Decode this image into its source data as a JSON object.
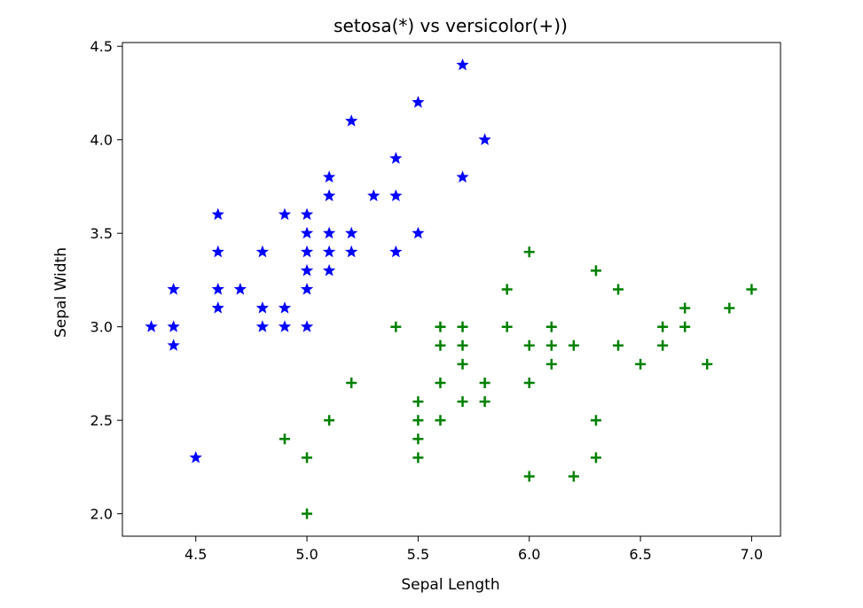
{
  "chart_data": {
    "type": "scatter",
    "title": "setosa(*) vs versicolor(+))",
    "xlabel": "Sepal Length",
    "ylabel": "Sepal Width",
    "xlim": [
      4.17,
      7.13
    ],
    "ylim": [
      1.88,
      4.52
    ],
    "xticks": [
      "4.5",
      "5.0",
      "5.5",
      "6.0",
      "6.5",
      "7.0"
    ],
    "yticks": [
      "2.0",
      "2.5",
      "3.0",
      "3.5",
      "4.0",
      "4.5"
    ],
    "legend": "none",
    "grid": false,
    "series": [
      {
        "marker": "star",
        "color": "#0000ff",
        "points": [
          [
            4.3,
            3.0
          ],
          [
            4.4,
            3.2
          ],
          [
            4.4,
            3.0
          ],
          [
            4.4,
            2.9
          ],
          [
            4.5,
            2.3
          ],
          [
            4.6,
            3.6
          ],
          [
            4.6,
            3.4
          ],
          [
            4.6,
            3.2
          ],
          [
            4.6,
            3.1
          ],
          [
            4.7,
            3.2
          ],
          [
            4.8,
            3.4
          ],
          [
            4.8,
            3.1
          ],
          [
            4.8,
            3.0
          ],
          [
            4.9,
            3.6
          ],
          [
            4.9,
            3.1
          ],
          [
            4.9,
            3.0
          ],
          [
            5.0,
            3.6
          ],
          [
            5.0,
            3.5
          ],
          [
            5.0,
            3.4
          ],
          [
            5.0,
            3.3
          ],
          [
            5.0,
            3.2
          ],
          [
            5.0,
            3.0
          ],
          [
            5.1,
            3.8
          ],
          [
            5.1,
            3.7
          ],
          [
            5.1,
            3.5
          ],
          [
            5.1,
            3.4
          ],
          [
            5.1,
            3.3
          ],
          [
            5.2,
            4.1
          ],
          [
            5.2,
            3.5
          ],
          [
            5.2,
            3.4
          ],
          [
            5.3,
            3.7
          ],
          [
            5.4,
            3.9
          ],
          [
            5.4,
            3.7
          ],
          [
            5.4,
            3.4
          ],
          [
            5.5,
            4.2
          ],
          [
            5.5,
            3.5
          ],
          [
            5.7,
            4.4
          ],
          [
            5.7,
            3.8
          ],
          [
            5.8,
            4.0
          ]
        ]
      },
      {
        "marker": "plus",
        "color": "#008000",
        "points": [
          [
            4.9,
            2.4
          ],
          [
            5.0,
            2.3
          ],
          [
            5.0,
            2.0
          ],
          [
            5.1,
            2.5
          ],
          [
            5.2,
            2.7
          ],
          [
            5.4,
            3.0
          ],
          [
            5.5,
            2.6
          ],
          [
            5.5,
            2.5
          ],
          [
            5.5,
            2.4
          ],
          [
            5.5,
            2.3
          ],
          [
            5.6,
            3.0
          ],
          [
            5.6,
            2.9
          ],
          [
            5.6,
            2.7
          ],
          [
            5.6,
            2.5
          ],
          [
            5.7,
            3.0
          ],
          [
            5.7,
            2.9
          ],
          [
            5.7,
            2.8
          ],
          [
            5.7,
            2.6
          ],
          [
            5.8,
            2.7
          ],
          [
            5.8,
            2.6
          ],
          [
            5.9,
            3.2
          ],
          [
            5.9,
            3.0
          ],
          [
            6.0,
            3.4
          ],
          [
            6.0,
            2.9
          ],
          [
            6.0,
            2.7
          ],
          [
            6.0,
            2.2
          ],
          [
            6.1,
            3.0
          ],
          [
            6.1,
            2.9
          ],
          [
            6.1,
            2.8
          ],
          [
            6.2,
            2.9
          ],
          [
            6.2,
            2.2
          ],
          [
            6.3,
            3.3
          ],
          [
            6.3,
            2.5
          ],
          [
            6.3,
            2.3
          ],
          [
            6.4,
            3.2
          ],
          [
            6.4,
            2.9
          ],
          [
            6.5,
            2.8
          ],
          [
            6.6,
            3.0
          ],
          [
            6.6,
            2.9
          ],
          [
            6.7,
            3.1
          ],
          [
            6.7,
            3.0
          ],
          [
            6.8,
            2.8
          ],
          [
            6.9,
            3.1
          ],
          [
            7.0,
            3.2
          ]
        ]
      }
    ]
  }
}
